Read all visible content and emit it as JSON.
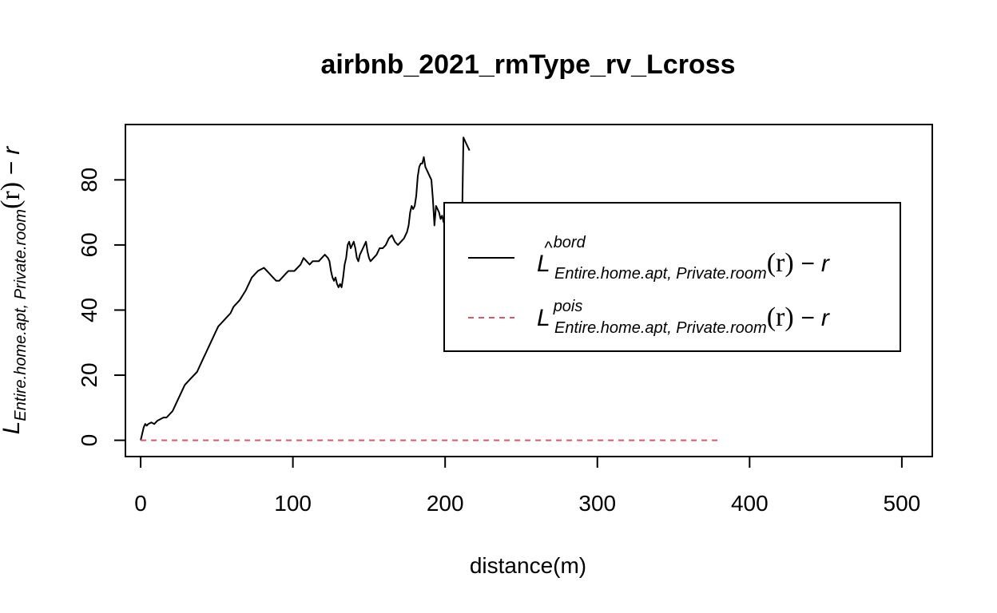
{
  "chart_data": {
    "type": "line",
    "title": "airbnb_2021_rmType_rv_Lcross",
    "xlabel": "distance(m)",
    "ylabel": {
      "main": "L",
      "subscript": "Entire.home.apt, Private.room",
      "arg": "(r)",
      "suffix": " − r"
    },
    "xlim": [
      -10,
      520
    ],
    "ylim": [
      -5,
      97
    ],
    "x_ticks": [
      0,
      100,
      200,
      300,
      400,
      500
    ],
    "y_ticks": [
      0,
      20,
      40,
      60,
      80
    ],
    "grid": false,
    "legend": {
      "placement": "right",
      "entries": [
        {
          "main": "L",
          "hat": true,
          "superscript": "bord",
          "subscript": "Entire.home.apt, Private.room",
          "arg": "(r)",
          "suffix": " − r",
          "color": "#000000",
          "dash": "solid"
        },
        {
          "main": "L",
          "hat": false,
          "superscript": "pois",
          "subscript": "Entire.home.apt, Private.room",
          "arg": "(r)",
          "suffix": " − r",
          "color": "#DF536B",
          "dash": "dashed"
        }
      ]
    },
    "series": [
      {
        "key": "bord",
        "color": "#000000",
        "dash": "solid",
        "points": [
          [
            0,
            0
          ],
          [
            1,
            2
          ],
          [
            2,
            4
          ],
          [
            3,
            5
          ],
          [
            4,
            4.5
          ],
          [
            5,
            5
          ],
          [
            7,
            5.5
          ],
          [
            9,
            5
          ],
          [
            11,
            6
          ],
          [
            13,
            6.5
          ],
          [
            15,
            7
          ],
          [
            17,
            7
          ],
          [
            19,
            8
          ],
          [
            21,
            9
          ],
          [
            23,
            11
          ],
          [
            25,
            13
          ],
          [
            27,
            15
          ],
          [
            29,
            17
          ],
          [
            31,
            18
          ],
          [
            33,
            19
          ],
          [
            35,
            20
          ],
          [
            37,
            21
          ],
          [
            39,
            23
          ],
          [
            41,
            25
          ],
          [
            43,
            27
          ],
          [
            45,
            29
          ],
          [
            47,
            31
          ],
          [
            49,
            33
          ],
          [
            51,
            35
          ],
          [
            53,
            36
          ],
          [
            55,
            37
          ],
          [
            57,
            38
          ],
          [
            59,
            39
          ],
          [
            61,
            41
          ],
          [
            63,
            42
          ],
          [
            65,
            43
          ],
          [
            67,
            44.5
          ],
          [
            69,
            46
          ],
          [
            71,
            48
          ],
          [
            73,
            50
          ],
          [
            75,
            51
          ],
          [
            77,
            52
          ],
          [
            79,
            52.5
          ],
          [
            81,
            53
          ],
          [
            83,
            52
          ],
          [
            85,
            51
          ],
          [
            87,
            50
          ],
          [
            89,
            49
          ],
          [
            91,
            49
          ],
          [
            93,
            50
          ],
          [
            95,
            51
          ],
          [
            97,
            52
          ],
          [
            99,
            52
          ],
          [
            101,
            52
          ],
          [
            103,
            53
          ],
          [
            105,
            54
          ],
          [
            107,
            56
          ],
          [
            109,
            55
          ],
          [
            111,
            54
          ],
          [
            113,
            55
          ],
          [
            115,
            55
          ],
          [
            117,
            55
          ],
          [
            119,
            56
          ],
          [
            121,
            57
          ],
          [
            123,
            56
          ],
          [
            124,
            55
          ],
          [
            125,
            52
          ],
          [
            126,
            50
          ],
          [
            127,
            49
          ],
          [
            128,
            50
          ],
          [
            129,
            48
          ],
          [
            130,
            47
          ],
          [
            131,
            48
          ],
          [
            132,
            47
          ],
          [
            133,
            50
          ],
          [
            134,
            54
          ],
          [
            135,
            56
          ],
          [
            136,
            60
          ],
          [
            137,
            61
          ],
          [
            138,
            59
          ],
          [
            139,
            60
          ],
          [
            140,
            61
          ],
          [
            141,
            59
          ],
          [
            142,
            56
          ],
          [
            143,
            55
          ],
          [
            144,
            57
          ],
          [
            145,
            58
          ],
          [
            146,
            59
          ],
          [
            147,
            60
          ],
          [
            148,
            61
          ],
          [
            149,
            58
          ],
          [
            150,
            56
          ],
          [
            151,
            55
          ],
          [
            153,
            56
          ],
          [
            155,
            57
          ],
          [
            157,
            59
          ],
          [
            159,
            59
          ],
          [
            161,
            60
          ],
          [
            163,
            62
          ],
          [
            165,
            63
          ],
          [
            167,
            61
          ],
          [
            169,
            60
          ],
          [
            171,
            61
          ],
          [
            173,
            62
          ],
          [
            175,
            64
          ],
          [
            176,
            66
          ],
          [
            177,
            70
          ],
          [
            178,
            72
          ],
          [
            179,
            71
          ],
          [
            180,
            72
          ],
          [
            181,
            75
          ],
          [
            182,
            81
          ],
          [
            183,
            84
          ],
          [
            184,
            85
          ],
          [
            185,
            85
          ],
          [
            186,
            87
          ],
          [
            187,
            84
          ],
          [
            188,
            83
          ],
          [
            189,
            82
          ],
          [
            190,
            81
          ],
          [
            191,
            80
          ],
          [
            192,
            74
          ],
          [
            193,
            66
          ],
          [
            194,
            72
          ],
          [
            195,
            71
          ],
          [
            196,
            70
          ],
          [
            197,
            68
          ],
          [
            198,
            69
          ],
          [
            199,
            67
          ],
          [
            200,
            68
          ],
          [
            201,
            67
          ],
          [
            202,
            69
          ],
          [
            203,
            68
          ],
          [
            204,
            67
          ],
          [
            205,
            66
          ],
          [
            206,
            67
          ],
          [
            207,
            65
          ],
          [
            208,
            64
          ],
          [
            209,
            65
          ],
          [
            210,
            63
          ],
          [
            211,
            64
          ],
          [
            212,
            93
          ],
          [
            214,
            91
          ],
          [
            215,
            90
          ],
          [
            216,
            89
          ]
        ]
      },
      {
        "key": "pois",
        "color": "#DF536B",
        "dash": "dashed",
        "points": [
          [
            0,
            0
          ],
          [
            380,
            0
          ]
        ]
      }
    ]
  }
}
